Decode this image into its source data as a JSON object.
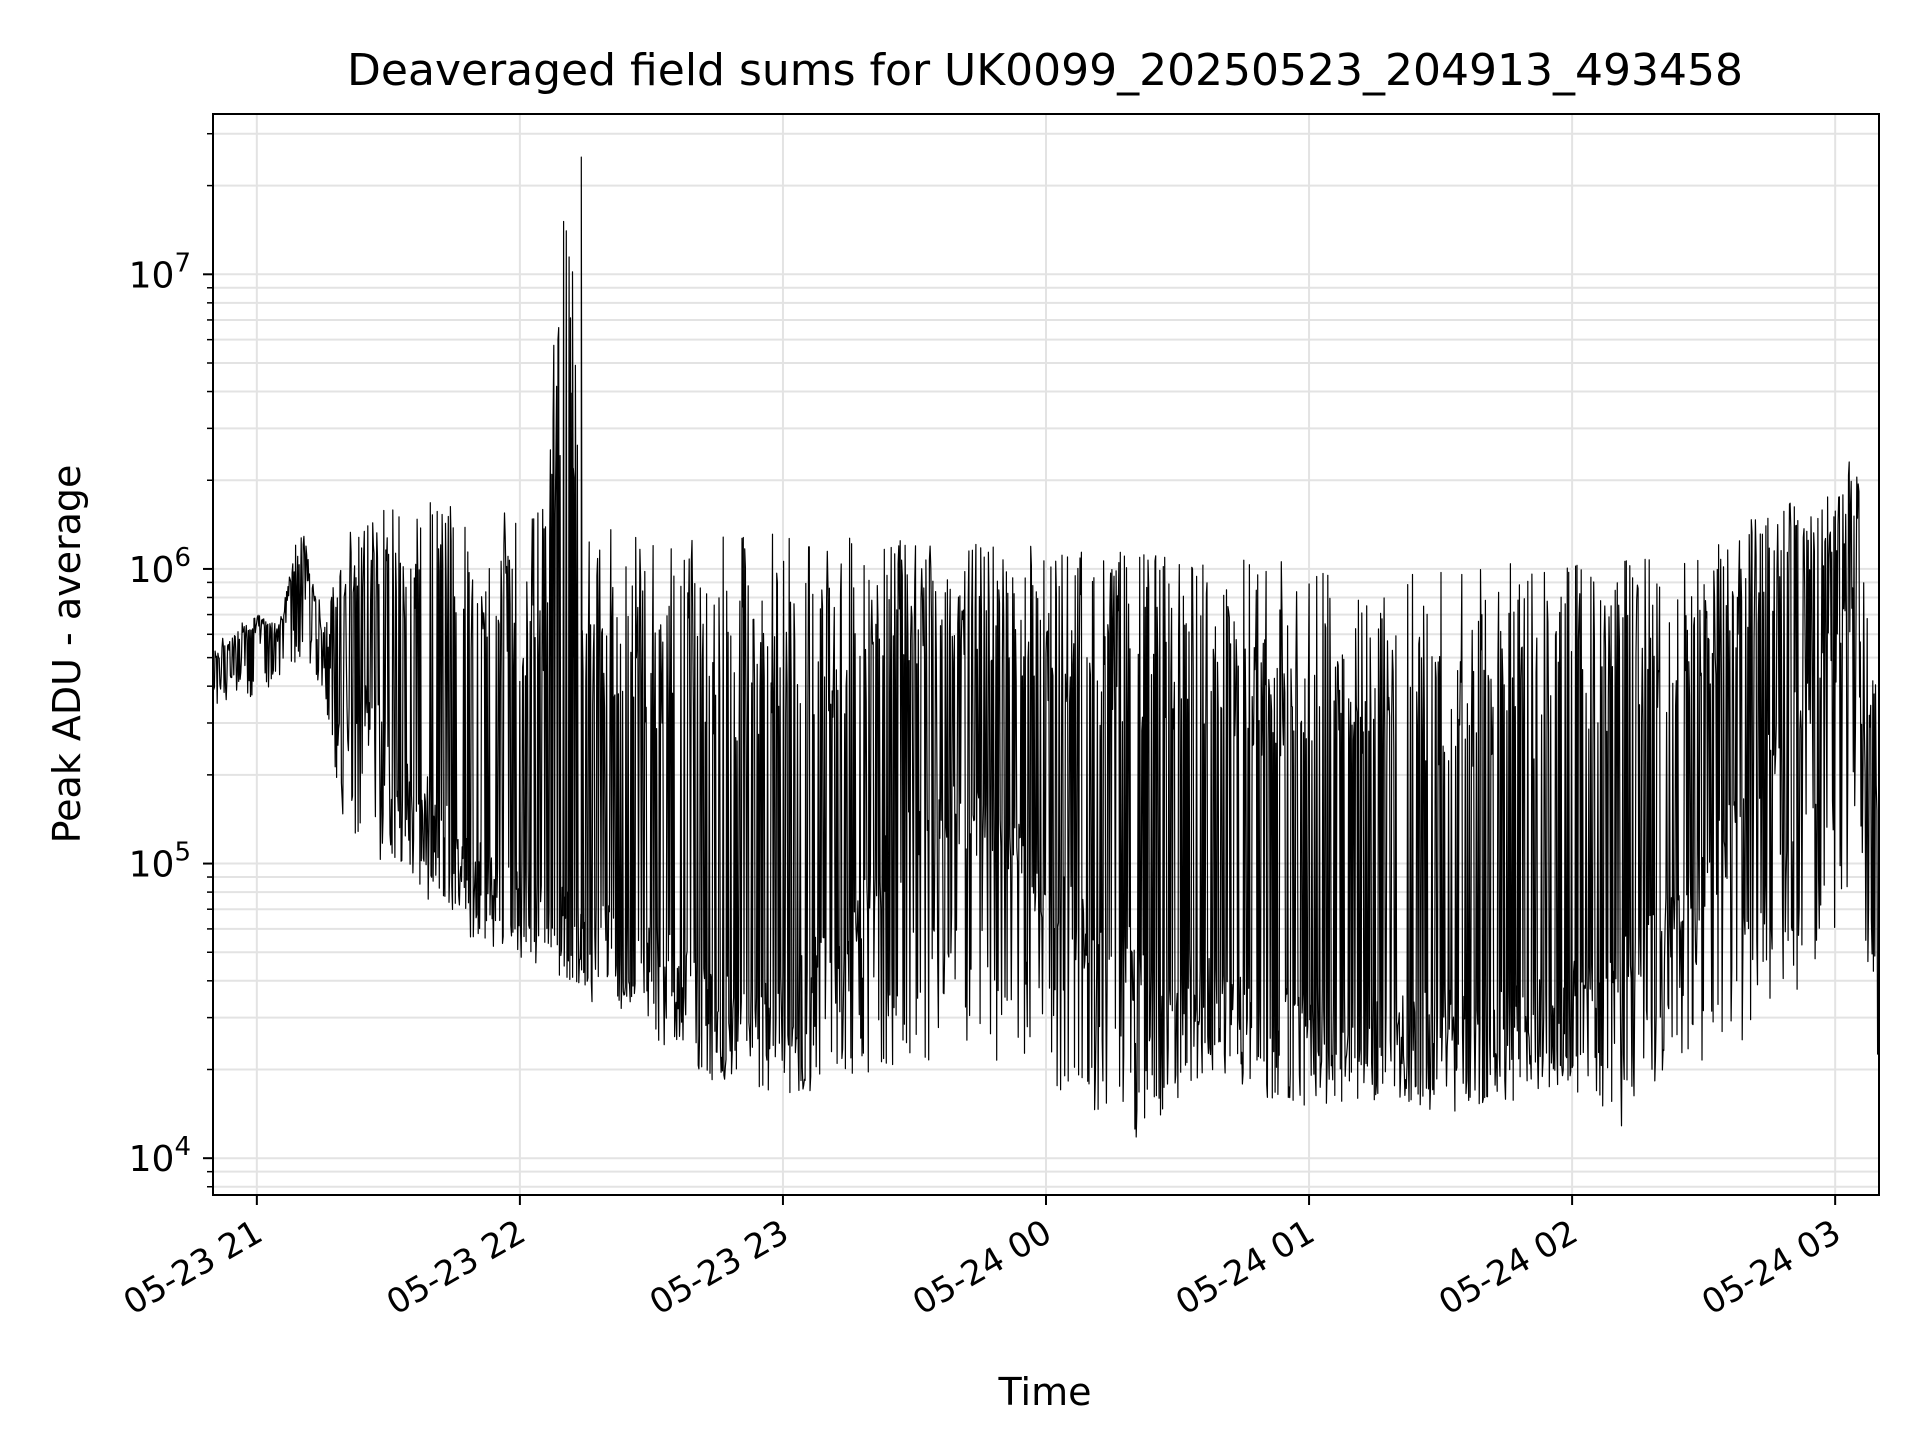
{
  "chart_data": {
    "type": "line",
    "title": "Deaveraged field sums for UK0099_20250523_204913_493458",
    "xlabel": "Time",
    "ylabel": "Peak ADU - average",
    "yscale": "log",
    "ylim": [
      7500,
      35000000
    ],
    "xlim": [
      "2025-05-23 20:50",
      "2025-05-24 03:10"
    ],
    "grid": true,
    "line_color": "#000000",
    "x_ticks": [
      {
        "t": "2025-05-23 21:00",
        "label": "05-23 21"
      },
      {
        "t": "2025-05-23 22:00",
        "label": "05-23 22"
      },
      {
        "t": "2025-05-23 23:00",
        "label": "05-23 23"
      },
      {
        "t": "2025-05-24 00:00",
        "label": "05-24 00"
      },
      {
        "t": "2025-05-24 01:00",
        "label": "05-24 01"
      },
      {
        "t": "2025-05-24 02:00",
        "label": "05-24 02"
      },
      {
        "t": "2025-05-24 03:00",
        "label": "05-24 03"
      }
    ],
    "y_ticks": [
      {
        "v": 10000,
        "base": "10",
        "exp": "4"
      },
      {
        "v": 100000,
        "base": "10",
        "exp": "5"
      },
      {
        "v": 1000000,
        "base": "10",
        "exp": "6"
      },
      {
        "v": 10000000,
        "base": "10",
        "exp": "7"
      }
    ],
    "series": [
      {
        "x": [
          "2025-05-23 20:50",
          "2025-05-23 20:55",
          "2025-05-23 21:00",
          "2025-05-23 21:05",
          "2025-05-23 21:10",
          "2025-05-23 21:15",
          "2025-05-23 21:20",
          "2025-05-23 21:25",
          "2025-05-23 21:30",
          "2025-05-23 21:35",
          "2025-05-23 21:40",
          "2025-05-23 21:45",
          "2025-05-23 21:50",
          "2025-05-23 21:55",
          "2025-05-23 22:00",
          "2025-05-23 22:05",
          "2025-05-23 22:10",
          "2025-05-23 22:15",
          "2025-05-23 22:20",
          "2025-05-23 22:25",
          "2025-05-23 22:30",
          "2025-05-23 22:35",
          "2025-05-23 22:40",
          "2025-05-23 22:45",
          "2025-05-23 22:50",
          "2025-05-23 22:55",
          "2025-05-23 23:00",
          "2025-05-23 23:10",
          "2025-05-23 23:20",
          "2025-05-23 23:30",
          "2025-05-23 23:40",
          "2025-05-23 23:50",
          "2025-05-24 00:00",
          "2025-05-24 00:10",
          "2025-05-24 00:20",
          "2025-05-24 00:30",
          "2025-05-24 00:40",
          "2025-05-24 00:50",
          "2025-05-24 01:00",
          "2025-05-24 01:10",
          "2025-05-24 01:20",
          "2025-05-24 01:30",
          "2025-05-24 01:40",
          "2025-05-24 01:50",
          "2025-05-24 02:00",
          "2025-05-24 02:10",
          "2025-05-24 02:20",
          "2025-05-24 02:30",
          "2025-05-24 02:40",
          "2025-05-24 02:50",
          "2025-05-24 03:00",
          "2025-05-24 03:05",
          "2025-05-24 03:10"
        ],
        "base": [
          420000,
          480000,
          560000,
          520000,
          900000,
          550000,
          450000,
          350000,
          220000,
          160000,
          145000,
          120000,
          95000,
          80000,
          75000,
          70000,
          62000,
          58000,
          55000,
          52000,
          48000,
          44000,
          40000,
          36000,
          32000,
          32000,
          33000,
          48000,
          80000,
          130000,
          150000,
          120000,
          80000,
          55000,
          45000,
          40000,
          35000,
          32000,
          30000,
          28000,
          27000,
          28000,
          30000,
          32000,
          35000,
          40000,
          55000,
          90000,
          150000,
          300000,
          500000,
          700000,
          22000
        ],
        "high": [
          520000,
          600000,
          700000,
          650000,
          1500000,
          600000,
          1300000,
          1600000,
          1650000,
          1700000,
          1700000,
          1650000,
          1600000,
          1600000,
          1550000,
          1600000,
          25000000,
          1500000,
          1400000,
          1300000,
          1250000,
          1250000,
          1250000,
          1280000,
          1300000,
          1350000,
          1400000,
          1300000,
          1250000,
          1250000,
          1250000,
          1220000,
          1200000,
          1180000,
          1150000,
          1120000,
          1100000,
          1080000,
          1070000,
          1050000,
          1040000,
          1030000,
          1030000,
          1050000,
          1080000,
          1100000,
          1150000,
          1250000,
          1450000,
          1700000,
          1900000,
          2600000,
          300000
        ],
        "low": [
          380000,
          400000,
          330000,
          400000,
          450000,
          400000,
          130000,
          110000,
          90000,
          80000,
          70000,
          60000,
          55000,
          50000,
          48000,
          45000,
          40000,
          35000,
          30000,
          27000,
          25000,
          22000,
          20000,
          18000,
          17000,
          16000,
          16000,
          17000,
          18000,
          20000,
          22000,
          20000,
          18000,
          15000,
          11000,
          16000,
          17000,
          16000,
          15000,
          15500,
          16000,
          14000,
          15000,
          16000,
          17000,
          12000,
          19000,
          21000,
          24000,
          35000,
          50000,
          95000,
          22000
        ]
      }
    ]
  }
}
